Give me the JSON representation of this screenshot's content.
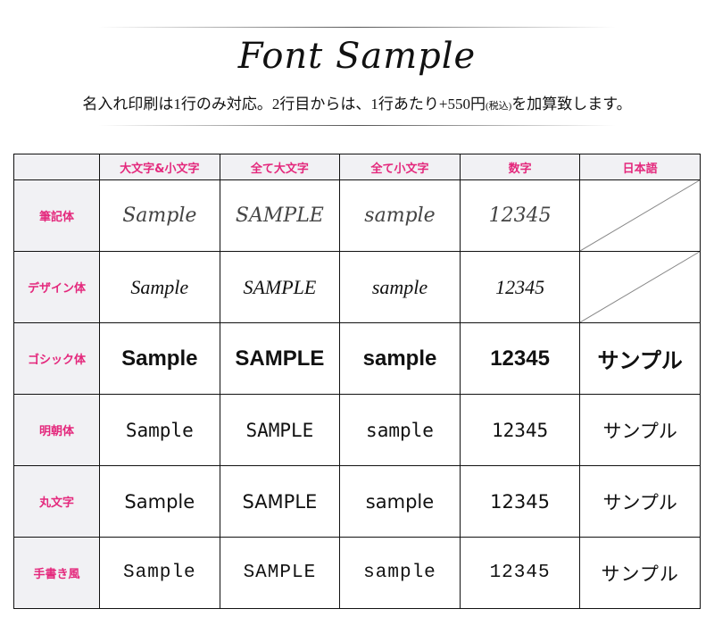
{
  "header": {
    "title": "Font Sample",
    "note_main": "名入れ印刷は1行のみ対応。2行目からは、1行あたり+550円",
    "note_tax": "(税込)",
    "note_end": "を加算致します。"
  },
  "table": {
    "columns": [
      "大文字&小文字",
      "全て大文字",
      "全て小文字",
      "数字",
      "日本語"
    ],
    "rows": [
      {
        "label": "筆記体",
        "cells": [
          "Sample",
          "SAMPLE",
          "sample",
          "12345",
          ""
        ]
      },
      {
        "label": "デザイン体",
        "cells": [
          "Sample",
          "SAMPLE",
          "sample",
          "12345",
          ""
        ]
      },
      {
        "label": "ゴシック体",
        "cells": [
          "Sample",
          "SAMPLE",
          "sample",
          "12345",
          "サンプル"
        ]
      },
      {
        "label": "明朝体",
        "cells": [
          "Sample",
          "SAMPLE",
          "sample",
          "12345",
          "サンプル"
        ]
      },
      {
        "label": "丸文字",
        "cells": [
          "Sample",
          "SAMPLE",
          "sample",
          "12345",
          "サンプル"
        ]
      },
      {
        "label": "手書き風",
        "cells": [
          "Sample",
          "SAMPLE",
          "sample",
          "12345",
          "サンプル"
        ]
      }
    ]
  },
  "colors": {
    "accent": "#e4287c",
    "header_bg": "#f1f1f4"
  }
}
